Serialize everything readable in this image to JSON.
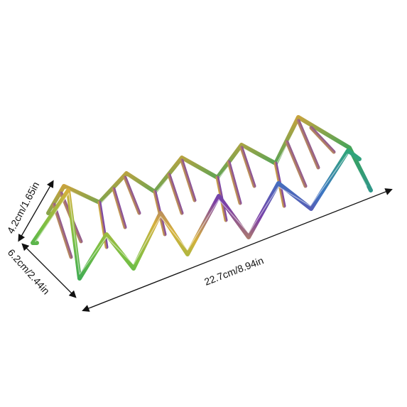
{
  "product": {
    "name": "",
    "finish": "rainbow-iridescent"
  },
  "dimensions": {
    "height_label": "4.2cm/1.65in",
    "depth_label": "6.2cm/2.44in",
    "length_label": "22.7cm/8.94in"
  },
  "colors": {
    "background": "#ffffff",
    "dimension_line": "#111111",
    "metal_green": "#3fb23a",
    "metal_purple": "#7a3fa0",
    "metal_gold": "#d7b43a",
    "metal_teal": "#2f9a95"
  }
}
